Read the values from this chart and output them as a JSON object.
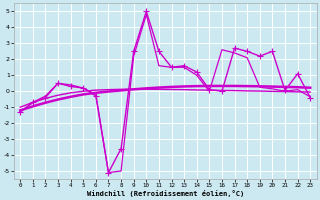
{
  "xlabel": "Windchill (Refroidissement éolien,°C)",
  "background_color": "#cce8f0",
  "grid_color": "#ffffff",
  "line_color": "#cc00cc",
  "xlim": [
    -0.5,
    23.5
  ],
  "ylim": [
    -5.5,
    5.5
  ],
  "yticks": [
    -5,
    -4,
    -3,
    -2,
    -1,
    0,
    1,
    2,
    3,
    4,
    5
  ],
  "xticks": [
    0,
    1,
    2,
    3,
    4,
    5,
    6,
    7,
    8,
    9,
    10,
    11,
    12,
    13,
    14,
    15,
    16,
    17,
    18,
    19,
    20,
    21,
    22,
    23
  ],
  "series": [
    {
      "x": [
        0,
        1,
        2,
        3,
        4,
        5,
        6,
        7,
        8,
        9,
        10,
        11,
        12,
        13,
        14,
        15,
        16,
        17,
        18,
        19,
        20,
        21,
        22,
        23
      ],
      "y": [
        -1.3,
        -0.7,
        -0.4,
        0.5,
        0.3,
        0.2,
        -0.3,
        -5.1,
        -3.6,
        2.5,
        5.0,
        2.5,
        1.5,
        1.6,
        1.2,
        0.1,
        0.0,
        2.7,
        2.5,
        2.2,
        2.5,
        0.05,
        1.1,
        -0.4
      ],
      "marker": "+",
      "linewidth": 1.0,
      "markersize": 4
    },
    {
      "x": [
        0,
        1,
        2,
        3,
        4,
        5,
        6,
        7,
        8,
        9,
        10,
        11,
        12,
        13,
        14,
        15,
        16,
        17,
        18,
        19,
        20,
        21,
        22,
        23
      ],
      "y": [
        -1.3,
        -0.7,
        -0.3,
        0.5,
        0.4,
        0.2,
        -0.2,
        -5.1,
        -5.0,
        2.2,
        4.8,
        1.6,
        1.5,
        1.5,
        1.0,
        0.0,
        2.6,
        2.4,
        2.1,
        0.25,
        0.15,
        0.0,
        0.1,
        -0.35
      ],
      "marker": null,
      "linewidth": 0.9,
      "markersize": 0
    },
    {
      "x": [
        0,
        1,
        2,
        3,
        4,
        5,
        6,
        7,
        8,
        9,
        10,
        11,
        12,
        13,
        14,
        15,
        16,
        17,
        18,
        19,
        20,
        21,
        22,
        23
      ],
      "y": [
        -1.2,
        -0.95,
        -0.72,
        -0.52,
        -0.35,
        -0.2,
        -0.1,
        -0.02,
        0.05,
        0.12,
        0.18,
        0.23,
        0.27,
        0.3,
        0.32,
        0.33,
        0.33,
        0.33,
        0.32,
        0.31,
        0.29,
        0.27,
        0.25,
        0.22
      ],
      "marker": null,
      "linewidth": 1.8,
      "markersize": 0
    },
    {
      "x": [
        0,
        1,
        2,
        3,
        4,
        5,
        6,
        7,
        8,
        9,
        10,
        11,
        12,
        13,
        14,
        15,
        16,
        17,
        18,
        19,
        20,
        21,
        22,
        23
      ],
      "y": [
        -1.0,
        -0.7,
        -0.45,
        -0.25,
        -0.1,
        0.0,
        0.07,
        0.1,
        0.12,
        0.13,
        0.13,
        0.12,
        0.11,
        0.1,
        0.08,
        0.07,
        0.05,
        0.04,
        0.02,
        0.01,
        -0.01,
        -0.02,
        -0.04,
        -0.05
      ],
      "marker": null,
      "linewidth": 1.0,
      "markersize": 0
    }
  ]
}
